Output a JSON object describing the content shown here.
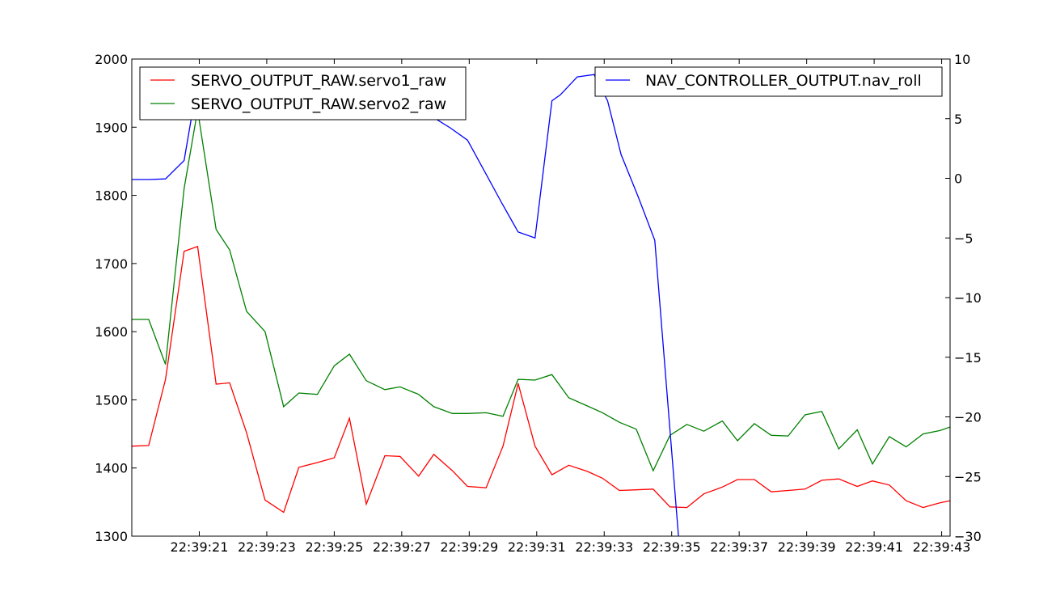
{
  "chart_data": {
    "type": "line",
    "x_axis": {
      "ticks": [
        "22:39:21",
        "22:39:23",
        "22:39:25",
        "22:39:27",
        "22:39:29",
        "22:39:31",
        "22:39:33",
        "22:39:35",
        "22:39:37",
        "22:39:39",
        "22:39:41",
        "22:39:43"
      ],
      "tick_seconds": [
        21,
        23,
        25,
        27,
        29,
        31,
        33,
        35,
        37,
        39,
        41,
        43
      ],
      "range_seconds": [
        19.0,
        43.25
      ]
    },
    "left_axis": {
      "ylim": [
        1300,
        2000
      ],
      "ticks": [
        "1300",
        "1400",
        "1500",
        "1600",
        "1700",
        "1800",
        "1900",
        "2000"
      ],
      "tick_values": [
        1300,
        1400,
        1500,
        1600,
        1700,
        1800,
        1900,
        2000
      ]
    },
    "right_axis": {
      "ylim": [
        -30,
        10
      ],
      "ticks": [
        "−30",
        "−25",
        "−20",
        "−15",
        "−10",
        "−5",
        "0",
        "5",
        "10"
      ],
      "tick_values": [
        -30,
        -25,
        -20,
        -15,
        -10,
        -5,
        0,
        5,
        10
      ]
    },
    "grid": false,
    "legends": [
      {
        "placement": "upper-left",
        "entries": [
          "SERVO_OUTPUT_RAW.servo1_raw",
          "SERVO_OUTPUT_RAW.servo2_raw"
        ]
      },
      {
        "placement": "upper-right",
        "entries": [
          "NAV_CONTROLLER_OUTPUT.nav_roll"
        ]
      }
    ],
    "series": [
      {
        "name": "SERVO_OUTPUT_RAW.servo1_raw",
        "axis": "left",
        "color": "#ff0000",
        "x": [
          19.0,
          19.5,
          20.0,
          20.55,
          20.95,
          21.5,
          21.9,
          22.4,
          22.95,
          23.5,
          23.95,
          24.5,
          25.0,
          25.45,
          25.95,
          26.5,
          26.95,
          27.5,
          27.95,
          28.5,
          28.95,
          29.5,
          30.0,
          30.45,
          30.95,
          31.45,
          31.95,
          32.5,
          32.95,
          33.45,
          33.95,
          34.45,
          34.95,
          35.45,
          35.95,
          36.5,
          36.95,
          37.45,
          37.95,
          38.45,
          38.95,
          39.45,
          39.95,
          40.5,
          40.95,
          41.45,
          41.95,
          42.45,
          42.95,
          43.25
        ],
        "y": [
          1432,
          1433,
          1530,
          1718,
          1725,
          1523,
          1525,
          1452,
          1353,
          1335,
          1401,
          1408,
          1415,
          1473,
          1347,
          1418,
          1417,
          1388,
          1420,
          1396,
          1373,
          1371,
          1432,
          1524,
          1432,
          1390,
          1404,
          1395,
          1385,
          1367,
          1368,
          1369,
          1343,
          1342,
          1362,
          1372,
          1383,
          1383,
          1365,
          1367,
          1369,
          1382,
          1384,
          1373,
          1381,
          1375,
          1352,
          1342,
          1349,
          1352
        ]
      },
      {
        "name": "SERVO_OUTPUT_RAW.servo2_raw",
        "axis": "left",
        "color": "#008000",
        "x": [
          19.0,
          19.5,
          20.0,
          20.55,
          20.95,
          21.5,
          21.9,
          22.4,
          22.95,
          23.5,
          23.95,
          24.5,
          25.0,
          25.45,
          25.95,
          26.5,
          26.95,
          27.5,
          27.95,
          28.5,
          28.95,
          29.5,
          30.0,
          30.45,
          30.95,
          31.45,
          31.95,
          32.5,
          32.95,
          33.45,
          33.95,
          34.45,
          34.95,
          35.45,
          35.95,
          36.5,
          36.95,
          37.45,
          37.95,
          38.45,
          38.95,
          39.45,
          39.95,
          40.5,
          40.95,
          41.45,
          41.95,
          42.45,
          42.95,
          43.25
        ],
        "y": [
          1618,
          1618,
          1552,
          1810,
          1925,
          1750,
          1720,
          1630,
          1600,
          1490,
          1510,
          1508,
          1550,
          1567,
          1528,
          1515,
          1519,
          1508,
          1490,
          1480,
          1480,
          1481,
          1476,
          1530,
          1529,
          1537,
          1503,
          1491,
          1481,
          1467,
          1457,
          1396,
          1448,
          1464,
          1454,
          1469,
          1440,
          1465,
          1448,
          1447,
          1478,
          1483,
          1428,
          1456,
          1406,
          1446,
          1431,
          1450,
          1455,
          1460
        ]
      },
      {
        "name": "NAV_CONTROLLER_OUTPUT.nav_roll",
        "axis": "right",
        "color": "#0000ff",
        "x": [
          19.0,
          19.5,
          20.0,
          20.55,
          20.95,
          21.5,
          22.0,
          23.0,
          24.0,
          25.0,
          26.0,
          27.0,
          28.0,
          28.45,
          28.95,
          29.45,
          29.95,
          30.45,
          30.95,
          31.45,
          31.7,
          32.2,
          32.7,
          33.1,
          33.5,
          34.0,
          34.5,
          35.2,
          35.45,
          35.55
        ],
        "y": [
          -0.1,
          -0.1,
          -0.05,
          1.5,
          8.1,
          5.0,
          5.0,
          5.0,
          5.0,
          5.0,
          5.0,
          5.0,
          5.0,
          4.2,
          3.2,
          0.6,
          -2.0,
          -4.5,
          -5.0,
          6.5,
          7.0,
          8.5,
          8.7,
          6.5,
          2.0,
          -1.5,
          -5.2,
          -30.0,
          -31.0,
          -31.0
        ]
      }
    ]
  }
}
